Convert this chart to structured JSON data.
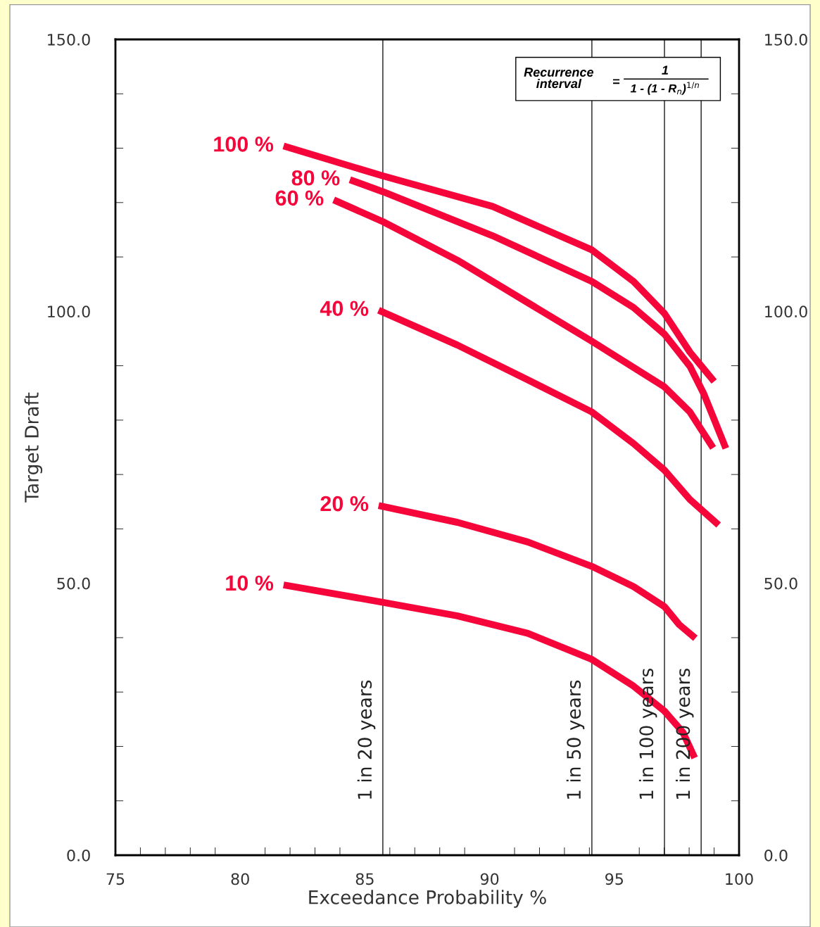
{
  "chart_data": {
    "type": "line",
    "xlabel": "Exceedance Probability %",
    "ylabel": "Target Draft",
    "xlim": [
      75,
      100
    ],
    "xticks": [
      75,
      80,
      85,
      90,
      95,
      100
    ],
    "ylim": [
      0,
      150
    ],
    "yticks": [
      {
        "value": 0,
        "label": "0.0"
      },
      {
        "value": 50,
        "label": "50.0"
      },
      {
        "value": 100,
        "label": "100.0"
      },
      {
        "value": 150,
        "label": "150.0"
      }
    ],
    "y2lim": [
      0,
      150
    ],
    "y2ticks": [
      {
        "value": 0,
        "label": "0.0"
      },
      {
        "value": 50,
        "label": "50.0"
      },
      {
        "value": 100,
        "label": "100.0"
      },
      {
        "value": 150,
        "label": "150.0"
      }
    ],
    "grid": false,
    "legend": false,
    "marker": "none",
    "line_style": "solid",
    "series": [
      {
        "name": "100 %",
        "color": "#f5053a",
        "x": [
          81.74,
          85.72,
          90.12,
          94.1,
          95.77,
          97.01,
          98.03,
          99.0
        ],
        "values": [
          130.4,
          124.9,
          119.3,
          111.3,
          105.5,
          99.6,
          92.5,
          87.1
        ]
      },
      {
        "name": "80 %",
        "color": "#f5053a",
        "x": [
          84.4,
          85.72,
          90.12,
          94.1,
          95.77,
          97.01,
          98.03,
          98.59,
          99.47
        ],
        "values": [
          124.2,
          122.0,
          113.9,
          105.5,
          100.7,
          95.8,
          89.9,
          84.8,
          74.8
        ]
      },
      {
        "name": "60 %",
        "color": "#f5053a",
        "x": [
          83.75,
          85.72,
          88.71,
          91.53,
          94.1,
          97.01,
          98.03,
          98.96
        ],
        "values": [
          120.5,
          116.5,
          109.4,
          101.6,
          94.5,
          86.1,
          81.5,
          74.9
        ]
      },
      {
        "name": "40 %",
        "color": "#f5053a",
        "x": [
          85.55,
          88.71,
          91.53,
          94.1,
          95.77,
          97.01,
          98.03,
          99.18
        ],
        "values": [
          100.2,
          93.8,
          87.4,
          81.5,
          75.7,
          70.8,
          65.4,
          60.7
        ]
      },
      {
        "name": "20 %",
        "color": "#f5053a",
        "x": [
          85.55,
          88.71,
          91.53,
          94.1,
          95.77,
          97.01,
          97.6,
          98.25
        ],
        "values": [
          64.3,
          61.2,
          57.6,
          53.1,
          49.4,
          45.7,
          42.4,
          39.9
        ]
      },
      {
        "name": "10 %",
        "color": "#f5053a",
        "x": [
          81.74,
          85.72,
          88.71,
          91.53,
          94.1,
          95.77,
          97.01,
          97.75,
          98.22
        ],
        "values": [
          49.7,
          46.5,
          44.0,
          40.8,
          36.0,
          31.1,
          26.5,
          22.6,
          17.9
        ]
      }
    ],
    "ref_lines": [
      {
        "axis": "x",
        "value": 85.72,
        "label": "1 in 20 years",
        "color": "#000000"
      },
      {
        "axis": "x",
        "value": 94.1,
        "label": "1 in 50 years",
        "color": "#000000"
      },
      {
        "axis": "x",
        "value": 97.01,
        "label": "1 in 100 years",
        "color": "#000000"
      },
      {
        "axis": "x",
        "value": 98.48,
        "label": "1 in 200 years",
        "color": "#000000"
      }
    ],
    "annotations": [
      "Recurrence\ninterval",
      "=",
      "1",
      "1 - (1 - R$_{n}$)$^{1/n}$"
    ]
  }
}
